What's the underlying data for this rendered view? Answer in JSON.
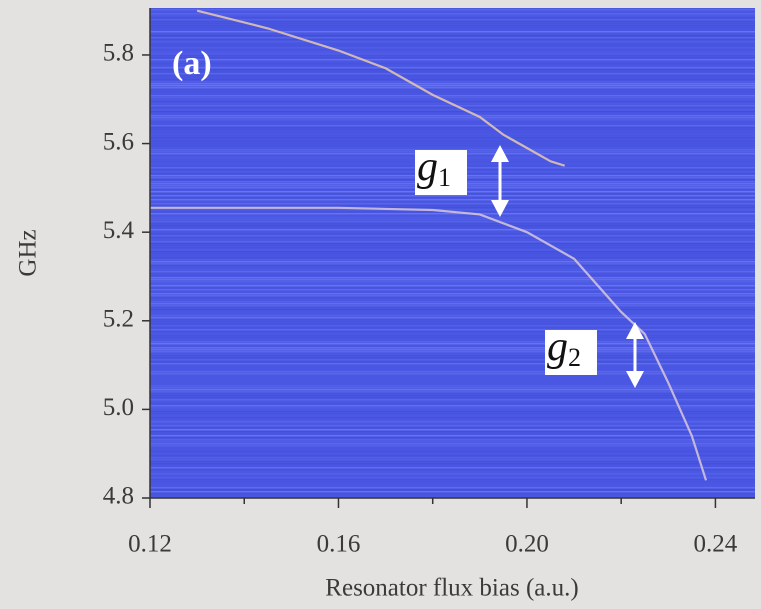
{
  "chart_data": {
    "type": "line",
    "xlabel": "Resonator flux bias (a.u.)",
    "ylabel": "GHz",
    "xlim": [
      0.12,
      0.2484
    ],
    "ylim": [
      4.8,
      5.906
    ],
    "xticks": [
      0.12,
      0.16,
      {
        "value": 0.2,
        "label": "0.20"
      },
      0.24
    ],
    "xminorticks": [
      0.14,
      0.18,
      0.22
    ],
    "yticks": [
      {
        "value": 4.8,
        "label": "4.8"
      },
      {
        "value": 5,
        "label": "5.0"
      },
      5.2,
      5.4,
      5.6,
      5.8
    ],
    "plot_color": "#4b58e4",
    "annotations": [
      {
        "text": "(a)"
      },
      {
        "text": "g",
        "sub": "1"
      },
      {
        "text": "g",
        "sub": "2"
      }
    ],
    "series": [
      {
        "color": "#e8c9b0",
        "x": [
          0.13,
          0.145,
          0.16,
          0.17,
          0.18,
          0.19,
          0.195,
          0.2,
          0.205,
          0.208
        ],
        "values": [
          5.9,
          5.86,
          5.81,
          5.77,
          5.71,
          5.66,
          5.62,
          5.59,
          5.56,
          5.55
        ]
      },
      {
        "color": "#d8c8d8",
        "x": [
          0.12,
          0.14,
          0.16,
          0.18,
          0.19,
          0.2,
          0.21,
          0.215,
          0.22,
          0.225,
          0.23,
          0.235,
          0.238
        ],
        "values": [
          5.455,
          5.455,
          5.455,
          5.45,
          5.44,
          5.4,
          5.34,
          5.28,
          5.22,
          5.17,
          5.06,
          4.94,
          4.84
        ]
      }
    ]
  }
}
